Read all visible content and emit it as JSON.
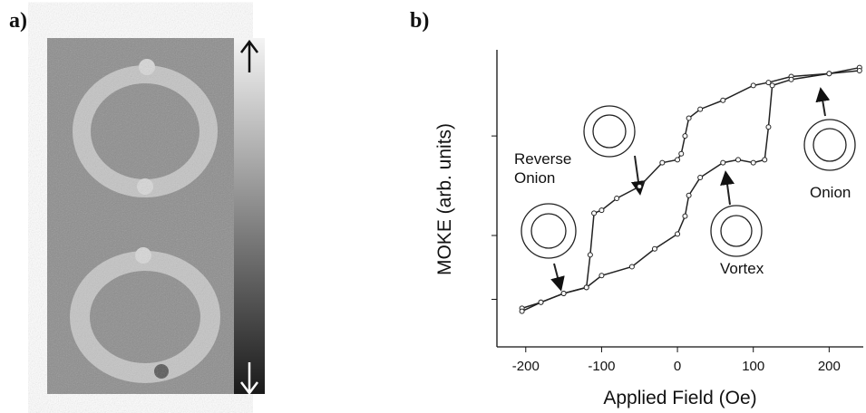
{
  "panel_labels": [
    "a)",
    "b)"
  ],
  "chart_data": {
    "type": "line",
    "xlabel": "Applied Field (Oe)",
    "ylabel": "MOKE (arb. units)",
    "xlim": [
      -238,
      245
    ],
    "xticks": [
      -200,
      -100,
      0,
      100,
      200
    ],
    "ylim": [
      0,
      1
    ],
    "yticks": [
      0.16,
      0.375,
      0.71
    ],
    "annotations": [
      "Reverse Onion",
      "Onion",
      "Vortex"
    ],
    "series": [
      {
        "color": "#222222",
        "x": [
          240,
          200,
          150,
          120,
          100,
          60,
          30,
          15,
          10,
          5,
          0,
          -20,
          -50,
          -80,
          -100,
          -110,
          -115,
          -120,
          -150,
          -180,
          -205
        ],
        "values": [
          0.94,
          0.92,
          0.91,
          0.89,
          0.88,
          0.83,
          0.8,
          0.77,
          0.71,
          0.65,
          0.63,
          0.62,
          0.54,
          0.5,
          0.46,
          0.45,
          0.31,
          0.2,
          0.18,
          0.15,
          0.13
        ]
      },
      {
        "color": "#222222",
        "x": [
          -205,
          -180,
          -150,
          -120,
          -100,
          -60,
          -30,
          0,
          10,
          15,
          30,
          60,
          80,
          100,
          115,
          120,
          125,
          150,
          200,
          240
        ],
        "values": [
          0.12,
          0.15,
          0.18,
          0.2,
          0.24,
          0.27,
          0.33,
          0.38,
          0.44,
          0.51,
          0.57,
          0.62,
          0.63,
          0.62,
          0.63,
          0.74,
          0.88,
          0.9,
          0.92,
          0.93
        ]
      }
    ]
  }
}
